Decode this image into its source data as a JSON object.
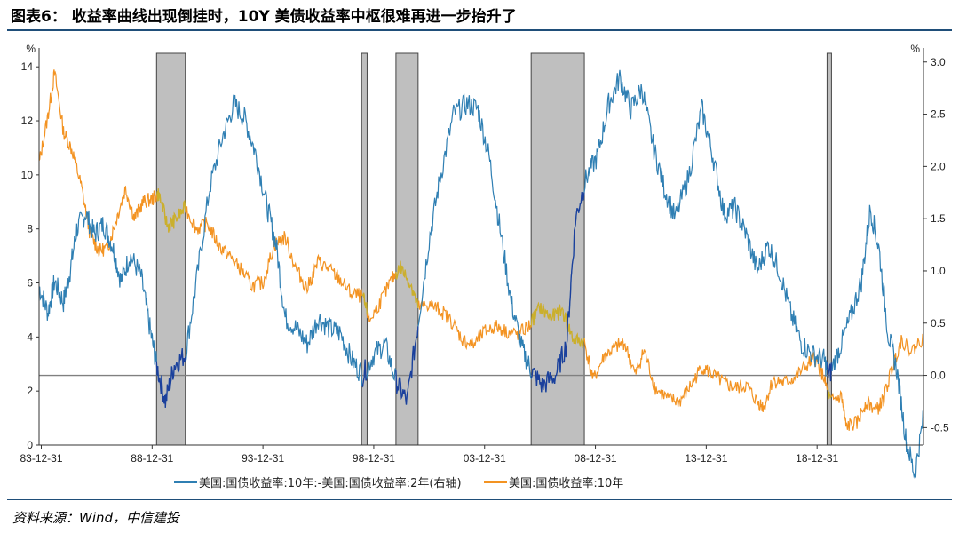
{
  "title": "图表6： 收益率曲线出现倒挂时，10Y 美债收益率中枢很难再进一步抬升了",
  "source": "资料来源：Wind，中信建投",
  "colors": {
    "spread": "#2f7fb3",
    "yield10y": "#f39322",
    "recession": "#bfbfbf",
    "inverted": "#1b3f9c",
    "overlap": "#c9b02c",
    "zero": "#808080"
  },
  "chart_data": {
    "type": "line",
    "title": "",
    "left_axis": {
      "unit": "%",
      "min": 0,
      "max": 14.5,
      "ticks": [
        0,
        2,
        4,
        6,
        8,
        10,
        12,
        14
      ]
    },
    "right_axis": {
      "unit": "%",
      "min": -0.667,
      "max": 3.083,
      "ticks": [
        "3.0",
        "2.5",
        "2.0",
        "1.5",
        "1.0",
        "0.5",
        "0.0",
        "-0.5"
      ]
    },
    "x_axis": {
      "start": 1983.9,
      "end": 2023.8,
      "tick_labels": [
        "83-12-31",
        "88-12-31",
        "93-12-31",
        "98-12-31",
        "03-12-31",
        "08-12-31",
        "13-12-31",
        "18-12-31"
      ],
      "tick_years": [
        1984,
        1989,
        1994,
        1999,
        2004,
        2009,
        2014,
        2019
      ]
    },
    "shaded_periods": [
      [
        1989.2,
        1990.5
      ],
      [
        1998.45,
        1998.7
      ],
      [
        2000.0,
        2001.0
      ],
      [
        2006.1,
        2008.5
      ],
      [
        2019.45,
        2019.65
      ]
    ],
    "series": [
      {
        "name": "美国:国债收益率:10年:-美国:国债收益率:2年(右轴)",
        "axis": "right",
        "points": [
          [
            1983.9,
            0.85
          ],
          [
            1984.3,
            0.6
          ],
          [
            1984.6,
            0.9
          ],
          [
            1985.0,
            0.7
          ],
          [
            1985.3,
            1.0
          ],
          [
            1985.6,
            1.4
          ],
          [
            1986.0,
            1.55
          ],
          [
            1986.4,
            1.35
          ],
          [
            1986.8,
            1.45
          ],
          [
            1987.2,
            1.25
          ],
          [
            1987.6,
            0.9
          ],
          [
            1988.0,
            1.15
          ],
          [
            1988.5,
            0.95
          ],
          [
            1988.9,
            0.45
          ],
          [
            1989.2,
            0.1
          ],
          [
            1989.6,
            -0.25
          ],
          [
            1990.0,
            0.1
          ],
          [
            1990.5,
            0.2
          ],
          [
            1991.0,
            0.9
          ],
          [
            1991.6,
            1.8
          ],
          [
            1992.2,
            2.3
          ],
          [
            1992.7,
            2.6
          ],
          [
            1993.2,
            2.45
          ],
          [
            1993.7,
            2.1
          ],
          [
            1994.2,
            1.6
          ],
          [
            1994.6,
            1.25
          ],
          [
            1995.0,
            0.55
          ],
          [
            1995.5,
            0.45
          ],
          [
            1996.0,
            0.3
          ],
          [
            1996.5,
            0.55
          ],
          [
            1997.0,
            0.45
          ],
          [
            1997.5,
            0.4
          ],
          [
            1998.0,
            0.15
          ],
          [
            1998.5,
            0.0
          ],
          [
            1999.0,
            0.2
          ],
          [
            1999.5,
            0.3
          ],
          [
            2000.0,
            -0.05
          ],
          [
            2000.5,
            -0.25
          ],
          [
            2001.0,
            0.5
          ],
          [
            2001.5,
            1.3
          ],
          [
            2002.0,
            1.9
          ],
          [
            2002.6,
            2.5
          ],
          [
            2003.2,
            2.6
          ],
          [
            2003.7,
            2.55
          ],
          [
            2004.2,
            2.1
          ],
          [
            2004.7,
            1.4
          ],
          [
            2005.2,
            0.7
          ],
          [
            2005.7,
            0.25
          ],
          [
            2006.1,
            0.05
          ],
          [
            2006.6,
            -0.1
          ],
          [
            2007.2,
            0.0
          ],
          [
            2007.7,
            0.3
          ],
          [
            2008.1,
            1.5
          ],
          [
            2008.6,
            1.9
          ],
          [
            2009.1,
            2.1
          ],
          [
            2009.6,
            2.6
          ],
          [
            2010.1,
            2.85
          ],
          [
            2010.6,
            2.55
          ],
          [
            2011.1,
            2.75
          ],
          [
            2011.6,
            2.2
          ],
          [
            2012.1,
            1.8
          ],
          [
            2012.6,
            1.5
          ],
          [
            2013.2,
            1.9
          ],
          [
            2013.8,
            2.55
          ],
          [
            2014.3,
            2.1
          ],
          [
            2014.8,
            1.55
          ],
          [
            2015.3,
            1.6
          ],
          [
            2015.8,
            1.35
          ],
          [
            2016.3,
            1.0
          ],
          [
            2016.8,
            1.25
          ],
          [
            2017.3,
            1.0
          ],
          [
            2017.8,
            0.6
          ],
          [
            2018.3,
            0.3
          ],
          [
            2018.8,
            0.2
          ],
          [
            2019.3,
            0.15
          ],
          [
            2019.55,
            0.0
          ],
          [
            2020.0,
            0.25
          ],
          [
            2020.5,
            0.55
          ],
          [
            2021.0,
            0.9
          ],
          [
            2021.4,
            1.6
          ],
          [
            2021.8,
            1.2
          ],
          [
            2022.2,
            0.4
          ],
          [
            2022.6,
            0.05
          ],
          [
            2023.0,
            -0.6
          ],
          [
            2023.4,
            -0.95
          ],
          [
            2023.8,
            -0.4
          ]
        ]
      },
      {
        "name": "美国:国债收益率:10年",
        "axis": "left",
        "points": [
          [
            1983.9,
            10.4
          ],
          [
            1984.3,
            12.2
          ],
          [
            1984.6,
            13.8
          ],
          [
            1985.0,
            11.6
          ],
          [
            1985.4,
            10.9
          ],
          [
            1985.8,
            9.6
          ],
          [
            1986.2,
            7.8
          ],
          [
            1986.6,
            7.2
          ],
          [
            1987.0,
            7.3
          ],
          [
            1987.4,
            8.4
          ],
          [
            1987.8,
            9.5
          ],
          [
            1988.2,
            8.4
          ],
          [
            1988.6,
            9.0
          ],
          [
            1989.0,
            9.1
          ],
          [
            1989.3,
            9.3
          ],
          [
            1989.7,
            8.1
          ],
          [
            1990.0,
            8.3
          ],
          [
            1990.5,
            8.8
          ],
          [
            1991.0,
            8.0
          ],
          [
            1991.5,
            8.2
          ],
          [
            1992.0,
            7.4
          ],
          [
            1992.5,
            7.0
          ],
          [
            1993.0,
            6.5
          ],
          [
            1993.5,
            5.9
          ],
          [
            1994.0,
            6.0
          ],
          [
            1994.5,
            7.4
          ],
          [
            1995.0,
            7.7
          ],
          [
            1995.5,
            6.5
          ],
          [
            1996.0,
            5.8
          ],
          [
            1996.5,
            6.8
          ],
          [
            1997.0,
            6.5
          ],
          [
            1997.5,
            6.1
          ],
          [
            1998.0,
            5.6
          ],
          [
            1998.5,
            5.5
          ],
          [
            1998.8,
            4.6
          ],
          [
            1999.3,
            5.3
          ],
          [
            1999.8,
            6.1
          ],
          [
            2000.2,
            6.6
          ],
          [
            2000.7,
            5.9
          ],
          [
            2001.0,
            5.1
          ],
          [
            2001.5,
            5.2
          ],
          [
            2002.0,
            5.0
          ],
          [
            2002.5,
            4.6
          ],
          [
            2003.0,
            3.9
          ],
          [
            2003.5,
            3.7
          ],
          [
            2004.0,
            4.2
          ],
          [
            2004.5,
            4.4
          ],
          [
            2005.0,
            4.2
          ],
          [
            2005.5,
            4.1
          ],
          [
            2006.0,
            4.4
          ],
          [
            2006.5,
            5.1
          ],
          [
            2007.0,
            4.7
          ],
          [
            2007.5,
            5.0
          ],
          [
            2008.0,
            3.9
          ],
          [
            2008.5,
            3.8
          ],
          [
            2008.9,
            2.4
          ],
          [
            2009.4,
            3.3
          ],
          [
            2009.9,
            3.6
          ],
          [
            2010.3,
            3.8
          ],
          [
            2010.8,
            2.6
          ],
          [
            2011.2,
            3.5
          ],
          [
            2011.7,
            2.1
          ],
          [
            2012.3,
            1.7
          ],
          [
            2012.8,
            1.6
          ],
          [
            2013.3,
            2.2
          ],
          [
            2013.8,
            2.9
          ],
          [
            2014.3,
            2.6
          ],
          [
            2014.8,
            2.3
          ],
          [
            2015.3,
            2.1
          ],
          [
            2015.8,
            2.2
          ],
          [
            2016.3,
            1.6
          ],
          [
            2016.6,
            1.4
          ],
          [
            2017.0,
            2.4
          ],
          [
            2017.5,
            2.3
          ],
          [
            2018.0,
            2.5
          ],
          [
            2018.6,
            3.0
          ],
          [
            2018.9,
            3.2
          ],
          [
            2019.3,
            2.5
          ],
          [
            2019.6,
            1.6
          ],
          [
            2020.1,
            1.8
          ],
          [
            2020.3,
            0.7
          ],
          [
            2020.8,
            0.8
          ],
          [
            2021.2,
            1.6
          ],
          [
            2021.7,
            1.3
          ],
          [
            2022.0,
            1.7
          ],
          [
            2022.4,
            2.9
          ],
          [
            2022.8,
            3.9
          ],
          [
            2023.3,
            3.5
          ],
          [
            2023.8,
            4.0
          ]
        ]
      }
    ],
    "legend": {
      "position": "bottom",
      "entries": [
        {
          "label": "美国:国债收益率:10年:-美国:国债收益率:2年(右轴)",
          "series": 0
        },
        {
          "label": "美国:国债收益率:10年",
          "series": 1
        }
      ]
    }
  }
}
